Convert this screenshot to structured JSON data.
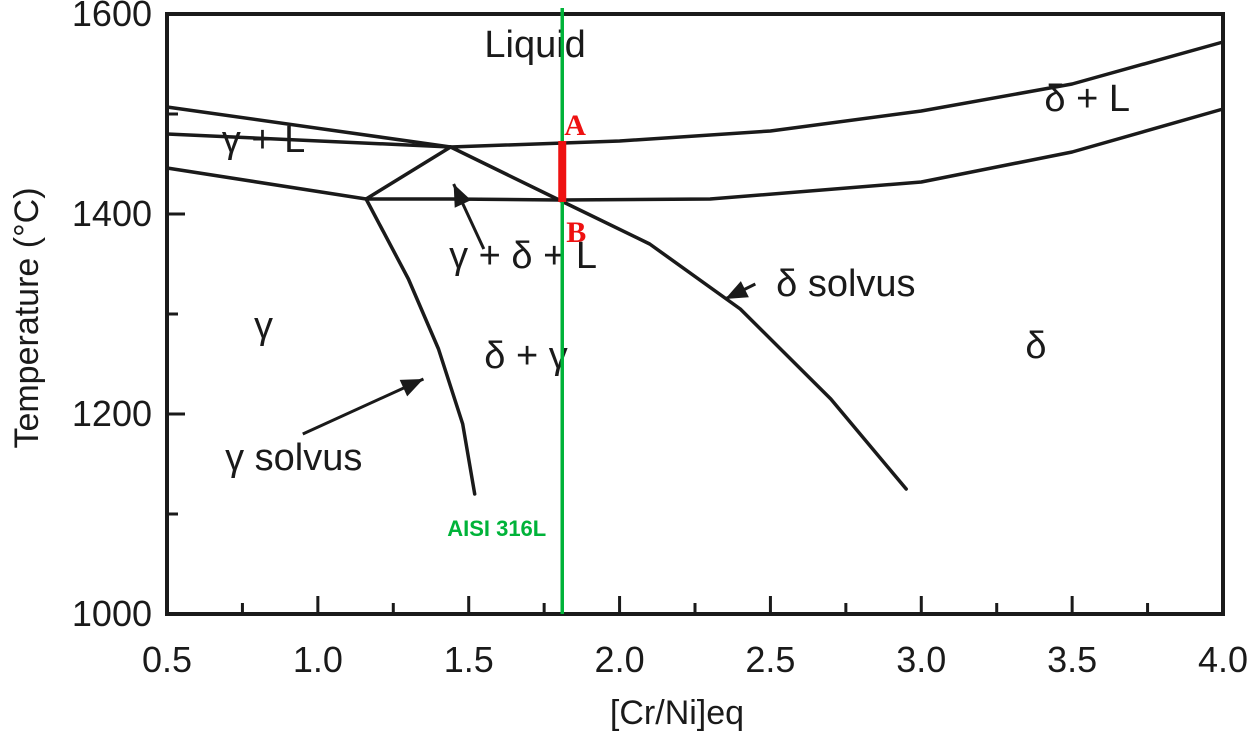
{
  "chart_data": {
    "type": "line",
    "xlabel": "[Cr/Ni]eq",
    "ylabel": "Temperature (°C)",
    "xlim": [
      0.5,
      4.0
    ],
    "ylim": [
      1000,
      1600
    ],
    "xticks": [
      0.5,
      1.0,
      1.5,
      2.0,
      2.5,
      3.0,
      3.5,
      4.0
    ],
    "xtick_labels": [
      "0.5",
      "1.0",
      "1.5",
      "2.0",
      "2.5",
      "3.0",
      "3.5",
      "4.0"
    ],
    "yticks": [
      1000,
      1200,
      1400,
      1600
    ],
    "ytick_labels": [
      "1000",
      "1200",
      "1400",
      "1600"
    ],
    "grid": false,
    "lines": [
      {
        "x": [
          0.5,
          1.44,
          2.0,
          2.5,
          3.0,
          3.5,
          4.0
        ],
        "y": [
          1507,
          1467,
          1473,
          1483,
          1503,
          1530,
          1572
        ]
      },
      {
        "x": [
          0.5,
          1.44
        ],
        "y": [
          1480,
          1467
        ]
      },
      {
        "x": [
          1.44,
          1.8,
          2.3,
          3.0,
          3.5,
          4.0
        ],
        "y": [
          1467,
          1414,
          1415,
          1432,
          1462,
          1505
        ]
      },
      {
        "x": [
          1.16,
          1.44
        ],
        "y": [
          1415,
          1467
        ]
      },
      {
        "x": [
          1.16,
          1.44,
          1.8
        ],
        "y": [
          1415,
          1415,
          1414
        ]
      },
      {
        "x": [
          0.5,
          1.16
        ],
        "y": [
          1446,
          1415
        ]
      },
      {
        "x": [
          1.16,
          1.3,
          1.4,
          1.48,
          1.52
        ],
        "y": [
          1415,
          1335,
          1265,
          1190,
          1120
        ]
      },
      {
        "x": [
          1.8,
          2.1,
          2.4,
          2.7,
          2.95
        ],
        "y": [
          1414,
          1370,
          1305,
          1215,
          1125
        ]
      }
    ],
    "annotations": [
      {
        "text": "Liquid",
        "x": 1.72,
        "y": 1557
      },
      {
        "text": "δ + L",
        "x": 3.55,
        "y": 1503
      },
      {
        "text": "γ + L",
        "x": 0.82,
        "y": 1462
      },
      {
        "text": "γ + δ + L",
        "x": 1.68,
        "y": 1346
      },
      {
        "text": "δ solvus",
        "x": 2.75,
        "y": 1318
      },
      {
        "text": "γ",
        "x": 0.82,
        "y": 1276
      },
      {
        "text": "δ + γ",
        "x": 1.69,
        "y": 1246
      },
      {
        "text": "δ",
        "x": 3.38,
        "y": 1256
      },
      {
        "text": "γ solvus",
        "x": 0.92,
        "y": 1144
      }
    ],
    "arrows": [
      {
        "from": [
          1.55,
          1365
        ],
        "to": [
          1.45,
          1430
        ]
      },
      {
        "from": [
          2.45,
          1330
        ],
        "to": [
          2.35,
          1315
        ]
      },
      {
        "from": [
          0.95,
          1180
        ],
        "to": [
          1.35,
          1235
        ]
      }
    ],
    "alloy_line": {
      "text": "AISI 316L",
      "x": 1.81,
      "color": "#00b339",
      "label_y": 1078
    },
    "segment": {
      "x": 1.81,
      "y_top": 1473,
      "y_bottom": 1412,
      "color": "#ee1111",
      "top_label": "A",
      "bottom_label": "B"
    }
  }
}
